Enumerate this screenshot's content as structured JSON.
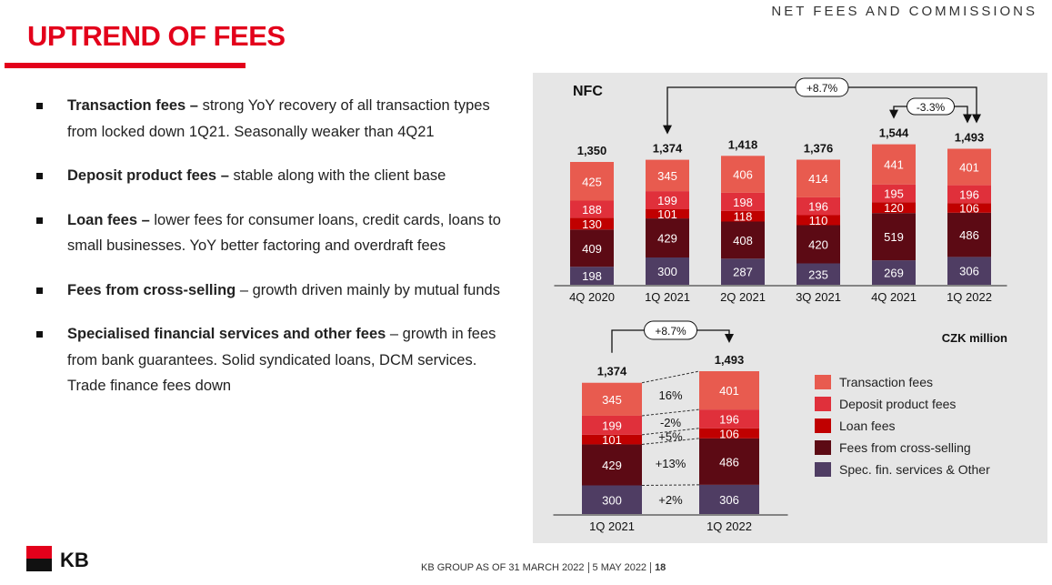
{
  "header": {
    "section": "NET FEES AND COMMISSIONS",
    "title": "UPTREND OF FEES"
  },
  "bullets": [
    {
      "bold": "Transaction fees –",
      "text": " strong YoY recovery of all transaction types from locked down 1Q21. Seasonally weaker than 4Q21"
    },
    {
      "bold": "Deposit product fees –",
      "text": " stable along with the client base"
    },
    {
      "bold": "Loan fees –",
      "text": " lower fees for consumer loans, credit cards, loans to small businesses. YoY better factoring and overdraft fees"
    },
    {
      "bold": "Fees from cross-selling",
      "text": " – growth driven mainly by mutual funds"
    },
    {
      "bold": "Specialised financial services and other fees",
      "text": " – growth in fees from bank guarantees. Solid syndicated loans, DCM services. Trade finance fees down"
    }
  ],
  "colors": {
    "Transaction fees": "#e85b4f",
    "Deposit product fees": "#e0303b",
    "Loan fees": "#c00000",
    "Fees from cross-selling": "#5c0a14",
    "Spec. fin. services & Other": "#4f3d63"
  },
  "chart_data": [
    {
      "type": "bar",
      "title": "NFC",
      "categories": [
        "4Q 2020",
        "1Q 2021",
        "2Q 2021",
        "3Q 2021",
        "4Q 2021",
        "1Q 2022"
      ],
      "series": [
        {
          "name": "Spec. fin. services & Other",
          "values": [
            198,
            300,
            287,
            235,
            269,
            306
          ]
        },
        {
          "name": "Fees from cross-selling",
          "values": [
            409,
            429,
            408,
            420,
            519,
            486
          ]
        },
        {
          "name": "Loan fees",
          "values": [
            130,
            101,
            118,
            110,
            120,
            106
          ]
        },
        {
          "name": "Deposit product fees",
          "values": [
            188,
            199,
            198,
            196,
            195,
            196
          ]
        },
        {
          "name": "Transaction fees",
          "values": [
            425,
            345,
            406,
            414,
            441,
            401
          ]
        }
      ],
      "totals": [
        "1,350",
        "1,374",
        "1,418",
        "1,376",
        "1,544",
        "1,493"
      ],
      "annotations": [
        {
          "label": "+8.7%",
          "from": "1Q 2021",
          "to": "1Q 2022"
        },
        {
          "label": "-3.3%",
          "from": "4Q 2021",
          "to": "1Q 2022"
        }
      ]
    },
    {
      "type": "bar",
      "categories": [
        "1Q 2021",
        "1Q 2022"
      ],
      "series": [
        {
          "name": "Spec. fin. services & Other",
          "values": [
            300,
            306
          ],
          "change": "+2%"
        },
        {
          "name": "Fees from cross-selling",
          "values": [
            429,
            486
          ],
          "change": "+13%"
        },
        {
          "name": "Loan fees",
          "values": [
            101,
            106
          ],
          "change": "+5%"
        },
        {
          "name": "Deposit product fees",
          "values": [
            199,
            196
          ],
          "change": "-2%"
        },
        {
          "name": "Transaction fees",
          "values": [
            345,
            401
          ],
          "change": "16%"
        }
      ],
      "totals": [
        "1,374",
        "1,493"
      ],
      "annotations": [
        {
          "label": "+8.7%",
          "from": "1Q 2021",
          "to": "1Q 2022"
        }
      ],
      "unit": "CZK million",
      "legend": "right"
    }
  ],
  "legend": [
    "Transaction fees",
    "Deposit product fees",
    "Loan fees",
    "Fees from cross-selling",
    "Spec. fin. services & Other"
  ],
  "footer": {
    "source": "KB GROUP AS OF 31 MARCH 2022",
    "date": "5 MAY 2022",
    "page": "18"
  },
  "logo": {
    "text": "KB"
  }
}
